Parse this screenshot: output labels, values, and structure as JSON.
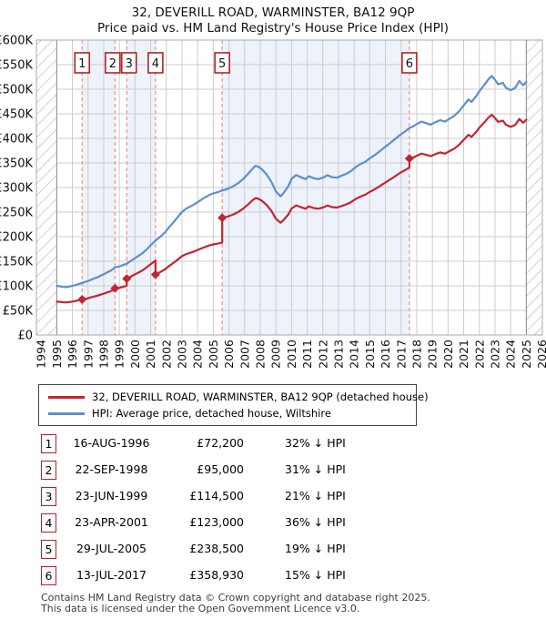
{
  "title": {
    "line1": "32, DEVERILL ROAD, WARMINSTER, BA12 9QP",
    "line2": "Price paid vs. HM Land Registry's House Price Index (HPI)"
  },
  "legend": {
    "items": [
      {
        "label": "32, DEVERILL ROAD, WARMINSTER, BA12 9QP (detached house)",
        "color": "#c32530"
      },
      {
        "label": "HPI: Average price, detached house, Wiltshire",
        "color": "#5e8fc9"
      }
    ]
  },
  "chart_data": {
    "type": "line",
    "title": "Price paid vs. HM Land Registry's House Price Index (HPI)",
    "x_range": [
      1994,
      2026
    ],
    "ylim_k": [
      0,
      600
    ],
    "y_tick_step_k": 50,
    "y_tick_labels": [
      "£0",
      "£50K",
      "£100K",
      "£150K",
      "£200K",
      "£250K",
      "£300K",
      "£350K",
      "£400K",
      "£450K",
      "£500K",
      "£550K",
      "£600K"
    ],
    "x_tick_labels": [
      "1994",
      "1995",
      "1996",
      "1997",
      "1998",
      "1999",
      "2000",
      "2001",
      "2002",
      "2003",
      "2004",
      "2005",
      "2006",
      "2007",
      "2008",
      "2009",
      "2010",
      "2011",
      "2012",
      "2013",
      "2014",
      "2015",
      "2016",
      "2017",
      "2018",
      "2019",
      "2020",
      "2021",
      "2022",
      "2023",
      "2024",
      "2025",
      "2026"
    ],
    "grid": true,
    "legend_position": "bottom",
    "colors": {
      "red_line": "#c32530",
      "blue_line": "#5e8fc9",
      "dashed_marker": "#f28d8d",
      "marker_box_border": "#b22222",
      "band_fill": "#edf2fb",
      "grid": "#cccccc",
      "plot_border": "#a8a8a8",
      "hatch_line": "#b5b5b5"
    },
    "no_data_hatch_periods": [
      [
        1993.7,
        1995.0
      ],
      [
        2025.0,
        2026.1
      ]
    ],
    "shaded_ownership_periods": [
      [
        1996.62,
        1998.72
      ],
      [
        1999.47,
        2001.31
      ],
      [
        2005.57,
        2017.53
      ]
    ],
    "transactions": [
      {
        "n": 1,
        "year": 1996.62,
        "price_k": 72.2,
        "box_dx": 0
      },
      {
        "n": 2,
        "year": 1998.72,
        "price_k": 95.0,
        "box_dx": -2.5
      },
      {
        "n": 3,
        "year": 1999.47,
        "price_k": 114.5,
        "box_dx": 2.5
      },
      {
        "n": 4,
        "year": 2001.31,
        "price_k": 123.0,
        "box_dx": 0
      },
      {
        "n": 5,
        "year": 2005.57,
        "price_k": 238.5,
        "box_dx": 0
      },
      {
        "n": 6,
        "year": 2017.53,
        "price_k": 358.93,
        "box_dx": 0
      }
    ],
    "series": [
      {
        "name": "HPI: Average price, detached house, Wiltshire",
        "color": "#5e8fc9",
        "points": [
          [
            1995.0,
            100
          ],
          [
            1995.2,
            99
          ],
          [
            1995.4,
            98
          ],
          [
            1995.6,
            97.5
          ],
          [
            1995.8,
            98.5
          ],
          [
            1996.0,
            100
          ],
          [
            1996.2,
            101.5
          ],
          [
            1996.4,
            103.5
          ],
          [
            1996.62,
            106
          ],
          [
            1996.8,
            107.5
          ],
          [
            1997.0,
            110
          ],
          [
            1997.2,
            112.5
          ],
          [
            1997.4,
            115
          ],
          [
            1997.6,
            117.5
          ],
          [
            1997.8,
            120.5
          ],
          [
            1998.0,
            123.5
          ],
          [
            1998.2,
            127
          ],
          [
            1998.4,
            130
          ],
          [
            1998.6,
            134
          ],
          [
            1998.72,
            137.5
          ],
          [
            1999.0,
            139.5
          ],
          [
            1999.2,
            142
          ],
          [
            1999.47,
            145
          ],
          [
            1999.7,
            150
          ],
          [
            2000.0,
            156.5
          ],
          [
            2000.2,
            160.5
          ],
          [
            2000.5,
            167
          ],
          [
            2000.8,
            176
          ],
          [
            2001.0,
            182.5
          ],
          [
            2001.31,
            192
          ],
          [
            2001.6,
            199.5
          ],
          [
            2001.9,
            208
          ],
          [
            2002.2,
            220
          ],
          [
            2002.5,
            231
          ],
          [
            2002.8,
            242.5
          ],
          [
            2003.0,
            250.5
          ],
          [
            2003.3,
            257.5
          ],
          [
            2003.6,
            262.5
          ],
          [
            2003.9,
            268
          ],
          [
            2004.2,
            274.5
          ],
          [
            2004.5,
            280.5
          ],
          [
            2004.8,
            285.5
          ],
          [
            2005.0,
            288
          ],
          [
            2005.3,
            290.5
          ],
          [
            2005.57,
            294
          ],
          [
            2005.8,
            296
          ],
          [
            2006.0,
            298.5
          ],
          [
            2006.3,
            303
          ],
          [
            2006.6,
            309
          ],
          [
            2006.9,
            317
          ],
          [
            2007.2,
            327
          ],
          [
            2007.5,
            338
          ],
          [
            2007.7,
            344
          ],
          [
            2007.9,
            342
          ],
          [
            2008.1,
            337
          ],
          [
            2008.4,
            327
          ],
          [
            2008.7,
            312.5
          ],
          [
            2009.0,
            292
          ],
          [
            2009.3,
            282
          ],
          [
            2009.5,
            289
          ],
          [
            2009.8,
            303
          ],
          [
            2010.0,
            317.5
          ],
          [
            2010.3,
            325.5
          ],
          [
            2010.6,
            321
          ],
          [
            2010.9,
            317
          ],
          [
            2011.1,
            323
          ],
          [
            2011.4,
            319
          ],
          [
            2011.7,
            317
          ],
          [
            2012.0,
            320
          ],
          [
            2012.3,
            325
          ],
          [
            2012.6,
            321
          ],
          [
            2012.9,
            320
          ],
          [
            2013.2,
            324
          ],
          [
            2013.5,
            328
          ],
          [
            2013.8,
            333.5
          ],
          [
            2014.1,
            341.5
          ],
          [
            2014.4,
            347.5
          ],
          [
            2014.7,
            352
          ],
          [
            2015.0,
            359.5
          ],
          [
            2015.3,
            365.5
          ],
          [
            2015.6,
            373
          ],
          [
            2015.9,
            380.5
          ],
          [
            2016.2,
            388
          ],
          [
            2016.5,
            395.5
          ],
          [
            2016.8,
            403.5
          ],
          [
            2017.0,
            408.5
          ],
          [
            2017.3,
            415
          ],
          [
            2017.53,
            421
          ],
          [
            2017.8,
            425
          ],
          [
            2018.0,
            429
          ],
          [
            2018.3,
            434
          ],
          [
            2018.6,
            431
          ],
          [
            2018.9,
            428
          ],
          [
            2019.2,
            433
          ],
          [
            2019.5,
            437
          ],
          [
            2019.8,
            434
          ],
          [
            2020.1,
            440
          ],
          [
            2020.4,
            446
          ],
          [
            2020.7,
            455
          ],
          [
            2021.0,
            467
          ],
          [
            2021.3,
            479
          ],
          [
            2021.5,
            474
          ],
          [
            2021.8,
            486
          ],
          [
            2022.0,
            496
          ],
          [
            2022.3,
            508
          ],
          [
            2022.6,
            521
          ],
          [
            2022.8,
            527
          ],
          [
            2023.0,
            519
          ],
          [
            2023.2,
            510
          ],
          [
            2023.5,
            513
          ],
          [
            2023.7,
            503
          ],
          [
            2024.0,
            498
          ],
          [
            2024.3,
            503
          ],
          [
            2024.55,
            517
          ],
          [
            2024.8,
            508
          ],
          [
            2025.0,
            515
          ]
        ]
      },
      {
        "name": "32, DEVERILL ROAD, WARMINSTER, BA12 9QP (detached house)",
        "color": "#c32530",
        "points": [
          [
            1995.0,
            68
          ],
          [
            1995.2,
            67.4
          ],
          [
            1995.4,
            66.6
          ],
          [
            1995.6,
            66.3
          ],
          [
            1995.8,
            67
          ],
          [
            1996.0,
            68
          ],
          [
            1996.2,
            69
          ],
          [
            1996.4,
            70.5
          ],
          [
            1996.62,
            72.2
          ],
          [
            1996.8,
            73.2
          ],
          [
            1997.0,
            74.9
          ],
          [
            1997.2,
            76.6
          ],
          [
            1997.4,
            78.3
          ],
          [
            1997.6,
            80
          ],
          [
            1997.8,
            82
          ],
          [
            1998.0,
            84.1
          ],
          [
            1998.2,
            86.5
          ],
          [
            1998.4,
            88.4
          ],
          [
            1998.6,
            91.2
          ],
          [
            1998.72,
            95
          ],
          [
            1999.0,
            96
          ],
          [
            1999.2,
            97.7
          ],
          [
            1999.47,
            100
          ],
          [
            1999.47,
            114.5
          ],
          [
            1999.7,
            118.4
          ],
          [
            2000.0,
            123.5
          ],
          [
            2000.2,
            126.7
          ],
          [
            2000.5,
            131.8
          ],
          [
            2000.8,
            138.9
          ],
          [
            2001.0,
            144
          ],
          [
            2001.31,
            151.5
          ],
          [
            2001.31,
            123
          ],
          [
            2001.6,
            127.7
          ],
          [
            2001.9,
            133.1
          ],
          [
            2002.2,
            140.8
          ],
          [
            2002.5,
            147.8
          ],
          [
            2002.8,
            155.2
          ],
          [
            2003.0,
            160.3
          ],
          [
            2003.3,
            164.8
          ],
          [
            2003.6,
            168
          ],
          [
            2003.9,
            171.5
          ],
          [
            2004.2,
            175.7
          ],
          [
            2004.5,
            179.5
          ],
          [
            2004.8,
            182.7
          ],
          [
            2005.0,
            184.3
          ],
          [
            2005.3,
            185.9
          ],
          [
            2005.57,
            188.2
          ],
          [
            2005.57,
            238.5
          ],
          [
            2005.8,
            239.8
          ],
          [
            2006.0,
            241.8
          ],
          [
            2006.3,
            245.4
          ],
          [
            2006.6,
            250.3
          ],
          [
            2006.9,
            256.8
          ],
          [
            2007.2,
            264.9
          ],
          [
            2007.5,
            273.8
          ],
          [
            2007.7,
            278.6
          ],
          [
            2007.9,
            277
          ],
          [
            2008.1,
            273
          ],
          [
            2008.4,
            264.9
          ],
          [
            2008.7,
            253.1
          ],
          [
            2009.0,
            236.5
          ],
          [
            2009.3,
            228.4
          ],
          [
            2009.5,
            234.1
          ],
          [
            2009.8,
            245.4
          ],
          [
            2010.0,
            257.2
          ],
          [
            2010.3,
            263.7
          ],
          [
            2010.6,
            260
          ],
          [
            2010.9,
            256.8
          ],
          [
            2011.1,
            261.6
          ],
          [
            2011.4,
            258.4
          ],
          [
            2011.7,
            256.8
          ],
          [
            2012.0,
            259.2
          ],
          [
            2012.3,
            263.3
          ],
          [
            2012.6,
            260
          ],
          [
            2012.9,
            259.2
          ],
          [
            2013.2,
            262.4
          ],
          [
            2013.5,
            265.7
          ],
          [
            2013.8,
            270.1
          ],
          [
            2014.1,
            276.6
          ],
          [
            2014.4,
            281.5
          ],
          [
            2014.7,
            285.1
          ],
          [
            2015.0,
            291.2
          ],
          [
            2015.3,
            296.1
          ],
          [
            2015.6,
            302.1
          ],
          [
            2015.9,
            308.2
          ],
          [
            2016.2,
            314.3
          ],
          [
            2016.5,
            320.4
          ],
          [
            2016.8,
            326.8
          ],
          [
            2017.0,
            330.9
          ],
          [
            2017.3,
            336.2
          ],
          [
            2017.53,
            341
          ],
          [
            2017.53,
            358.93
          ],
          [
            2017.8,
            361.3
          ],
          [
            2018.0,
            364.7
          ],
          [
            2018.3,
            368.9
          ],
          [
            2018.6,
            366.4
          ],
          [
            2018.9,
            363.8
          ],
          [
            2019.2,
            368.1
          ],
          [
            2019.5,
            371.5
          ],
          [
            2019.8,
            368.9
          ],
          [
            2020.1,
            374
          ],
          [
            2020.4,
            379.1
          ],
          [
            2020.7,
            386.8
          ],
          [
            2021.0,
            397
          ],
          [
            2021.3,
            407.2
          ],
          [
            2021.5,
            402.9
          ],
          [
            2021.8,
            413.1
          ],
          [
            2022.0,
            421.6
          ],
          [
            2022.3,
            431.8
          ],
          [
            2022.6,
            442.9
          ],
          [
            2022.8,
            447.9
          ],
          [
            2023.0,
            441.2
          ],
          [
            2023.2,
            433.5
          ],
          [
            2023.5,
            436.1
          ],
          [
            2023.7,
            427.6
          ],
          [
            2024.0,
            423.3
          ],
          [
            2024.3,
            427.6
          ],
          [
            2024.55,
            439.5
          ],
          [
            2024.8,
            431.8
          ],
          [
            2025.0,
            438
          ]
        ]
      }
    ]
  },
  "table": {
    "rows": [
      {
        "num": "1",
        "date": "16-AUG-1996",
        "price": "£72,200",
        "pct": "32% ↓ HPI"
      },
      {
        "num": "2",
        "date": "22-SEP-1998",
        "price": "£95,000",
        "pct": "31% ↓ HPI"
      },
      {
        "num": "3",
        "date": "23-JUN-1999",
        "price": "£114,500",
        "pct": "21% ↓ HPI"
      },
      {
        "num": "4",
        "date": "23-APR-2001",
        "price": "£123,000",
        "pct": "36% ↓ HPI"
      },
      {
        "num": "5",
        "date": "29-JUL-2005",
        "price": "£238,500",
        "pct": "19% ↓ HPI"
      },
      {
        "num": "6",
        "date": "13-JUL-2017",
        "price": "£358,930",
        "pct": "15% ↓ HPI"
      }
    ]
  },
  "footer": {
    "line1": "Contains HM Land Registry data © Crown copyright and database right 2025.",
    "line2": "This data is licensed under the Open Government Licence v3.0."
  }
}
